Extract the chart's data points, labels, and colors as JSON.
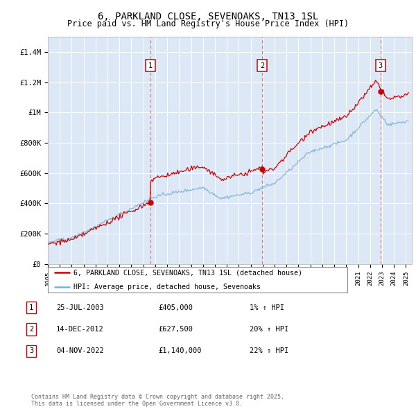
{
  "title_line1": "6, PARKLAND CLOSE, SEVENOAKS, TN13 1SL",
  "title_line2": "Price paid vs. HM Land Registry's House Price Index (HPI)",
  "ylim": [
    0,
    1500000
  ],
  "yticks": [
    0,
    200000,
    400000,
    600000,
    800000,
    1000000,
    1200000,
    1400000
  ],
  "ytick_labels": [
    "£0",
    "£200K",
    "£400K",
    "£600K",
    "£800K",
    "£1M",
    "£1.2M",
    "£1.4M"
  ],
  "background_color": "#dce8f5",
  "sale_prices": [
    405000,
    627500,
    1140000
  ],
  "sale_labels": [
    "1",
    "2",
    "3"
  ],
  "legend_line1": "6, PARKLAND CLOSE, SEVENOAKS, TN13 1SL (detached house)",
  "legend_line2": "HPI: Average price, detached house, Sevenoaks",
  "table_rows": [
    [
      "1",
      "25-JUL-2003",
      "£405,000",
      "1% ↑ HPI"
    ],
    [
      "2",
      "14-DEC-2012",
      "£627,500",
      "20% ↑ HPI"
    ],
    [
      "3",
      "04-NOV-2022",
      "£1,140,000",
      "22% ↑ HPI"
    ]
  ],
  "footer_text": "Contains HM Land Registry data © Crown copyright and database right 2025.\nThis data is licensed under the Open Government Licence v3.0.",
  "red_line_color": "#cc0000",
  "blue_line_color": "#7ab0d4",
  "dashed_line_color": "#dd4444"
}
